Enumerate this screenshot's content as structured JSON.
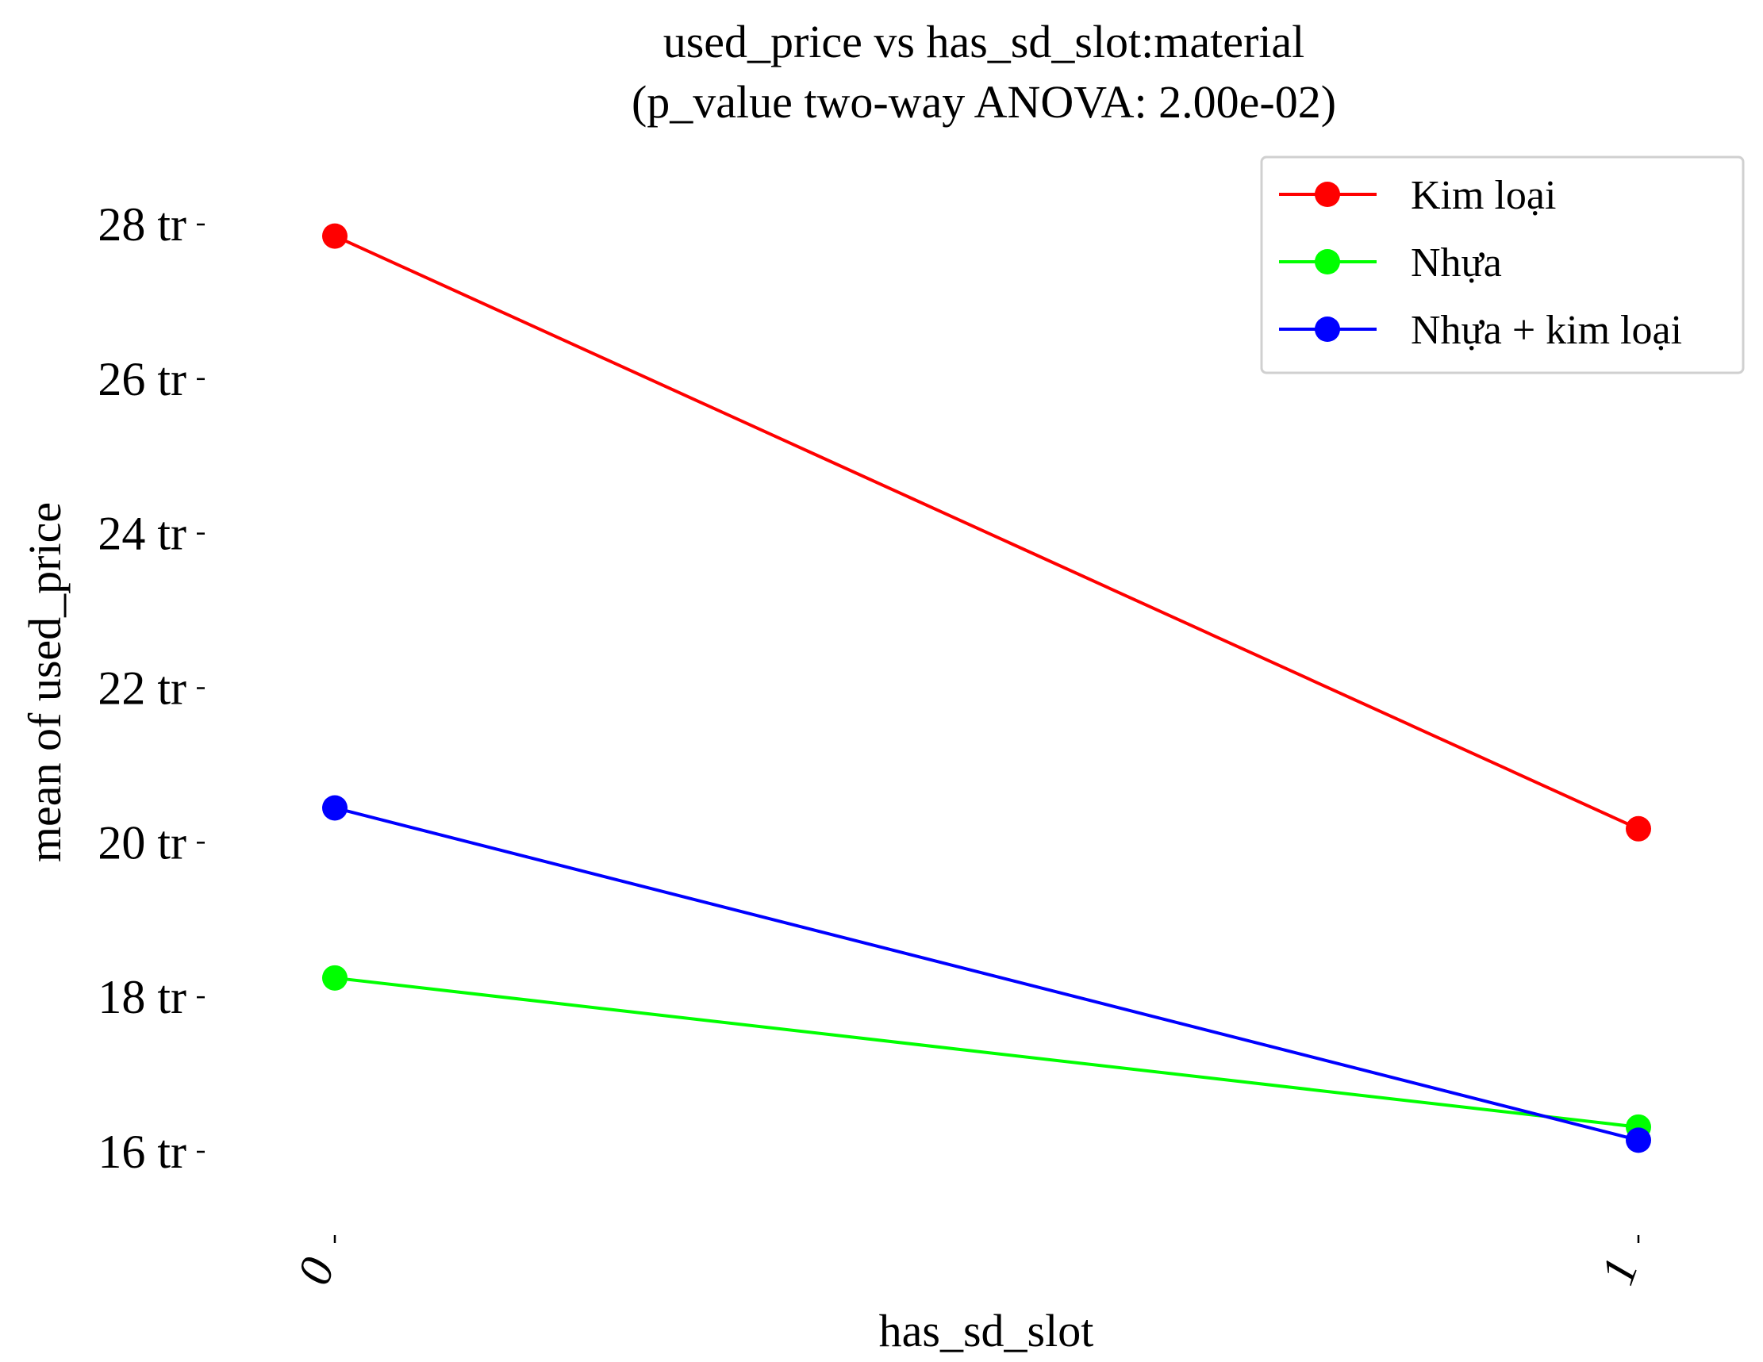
{
  "chart_data": {
    "type": "line",
    "title_line1": "used_price vs has_sd_slot:material",
    "title_line2": "(p_value two-way ANOVA: 2.00e-02)",
    "xlabel": "has_sd_slot",
    "ylabel": "mean of used_price",
    "categories": [
      "0",
      "1"
    ],
    "ylim": [
      14.8,
      29.0
    ],
    "yticks": [
      16,
      18,
      20,
      22,
      24,
      26,
      28
    ],
    "ytick_labels": [
      "16 tr",
      "18 tr",
      "20 tr",
      "22 tr",
      "24 tr",
      "26 tr",
      "28 tr"
    ],
    "grid": false,
    "legend_position": "top-right",
    "series": [
      {
        "name": "Kim loại",
        "color": "#ff0000",
        "values": [
          27.85,
          20.18
        ]
      },
      {
        "name": "Nhựa",
        "color": "#00ff00",
        "values": [
          18.25,
          16.32
        ]
      },
      {
        "name": "Nhựa + kim loại",
        "color": "#0000ff",
        "values": [
          20.45,
          16.15
        ]
      }
    ]
  }
}
